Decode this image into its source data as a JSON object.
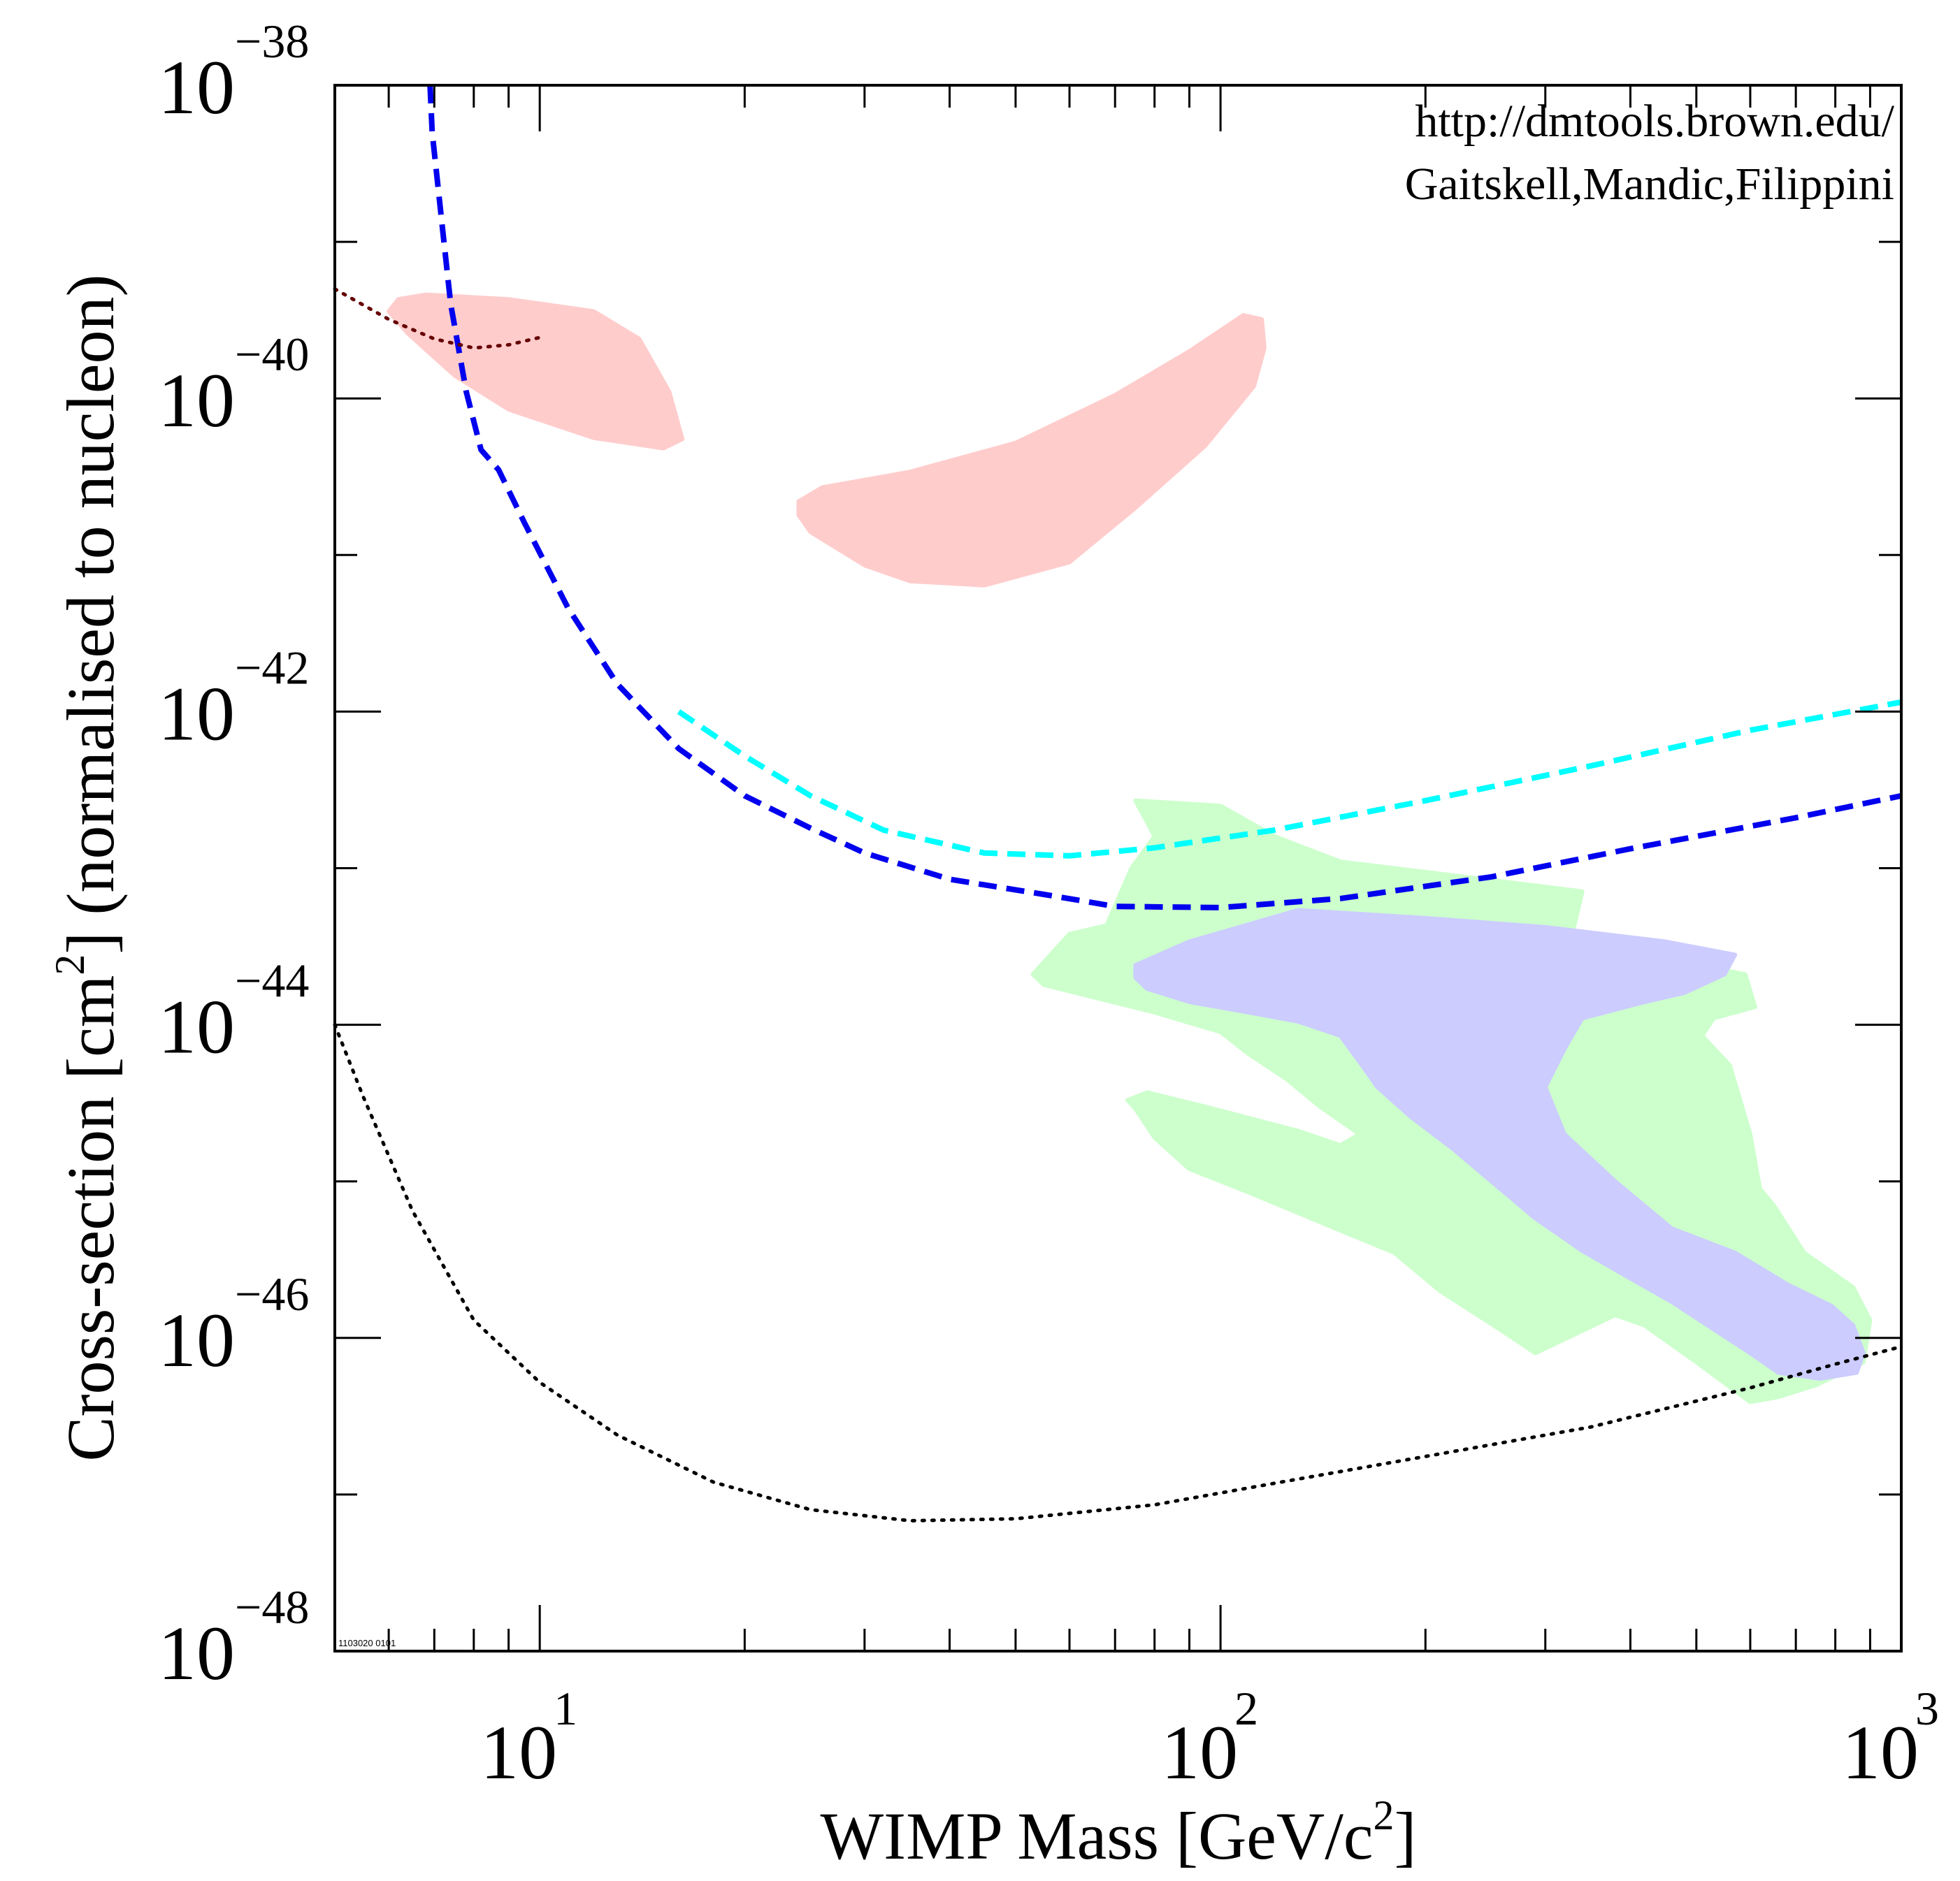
{
  "chart_data": {
    "type": "line",
    "xscale": "log",
    "yscale": "log",
    "xlim": [
      5,
      1000
    ],
    "ylim": [
      1e-48,
      1e-38
    ],
    "xlabel": {
      "main": "WIMP Mass [GeV/c",
      "sup": "2",
      "end": "]"
    },
    "ylabel": {
      "main": "Cross-section [cm",
      "sup": "2",
      "end": "] (normalised to nucleon)"
    },
    "xticks": [
      {
        "value": 10,
        "base": "10",
        "exp": "1"
      },
      {
        "value": 100,
        "base": "10",
        "exp": "2"
      },
      {
        "value": 1000,
        "base": "10",
        "exp": "3"
      }
    ],
    "yticks": [
      {
        "value": 1e-48,
        "base": "10",
        "exp": "−48"
      },
      {
        "value": 1e-46,
        "base": "10",
        "exp": "−46"
      },
      {
        "value": 1e-44,
        "base": "10",
        "exp": "−44"
      },
      {
        "value": 1e-42,
        "base": "10",
        "exp": "−42"
      },
      {
        "value": 1e-40,
        "base": "10",
        "exp": "−40"
      },
      {
        "value": 1e-38,
        "base": "10",
        "exp": "−38"
      }
    ],
    "annotations": [
      "http://dmtools.brown.edu/",
      "Gaitskell,Mandic,Filippini"
    ],
    "stamp": "1103020 0101",
    "regions": [
      {
        "name": "region-pink-low-mass",
        "color": "#ffcccc",
        "points": [
          [
            6.2,
            4.3e-40
          ],
          [
            6.8,
            4.6e-40
          ],
          [
            9,
            4.3e-40
          ],
          [
            12,
            3.6e-40
          ],
          [
            14,
            2.4e-40
          ],
          [
            15.5,
            1.1e-40
          ],
          [
            16.2,
            5.5e-41
          ],
          [
            15.2,
            4.8e-41
          ],
          [
            12,
            5.6e-41
          ],
          [
            9,
            8.5e-41
          ],
          [
            7.5,
            1.4e-40
          ],
          [
            6.4,
            2.6e-40
          ],
          [
            6.0,
            3.6e-40
          ]
        ]
      },
      {
        "name": "region-pink-high-mass",
        "color": "#ffcccc",
        "points": [
          [
            24,
            2.2e-41
          ],
          [
            26,
            2.7e-41
          ],
          [
            35,
            3.4e-41
          ],
          [
            50,
            5.2e-41
          ],
          [
            70,
            1.05e-40
          ],
          [
            90,
            2e-40
          ],
          [
            108,
            3.4e-40
          ],
          [
            115,
            3.2e-40
          ],
          [
            116,
            2.1e-40
          ],
          [
            112,
            1.2e-40
          ],
          [
            95,
            5e-41
          ],
          [
            75,
            2e-41
          ],
          [
            60,
            9e-42
          ],
          [
            45,
            6.4e-42
          ],
          [
            35,
            6.8e-42
          ],
          [
            30,
            8.6e-42
          ],
          [
            25,
            1.4e-41
          ],
          [
            24,
            1.8e-41
          ]
        ]
      },
      {
        "name": "region-green-outer",
        "color": "#ccffcc",
        "points": [
          [
            53,
            2.1e-44
          ],
          [
            60,
            3.8e-44
          ],
          [
            68,
            4.3e-44
          ],
          [
            74,
            1e-43
          ],
          [
            80,
            1.6e-43
          ],
          [
            75,
            2.7e-43
          ],
          [
            100,
            2.5e-43
          ],
          [
            120,
            1.6e-43
          ],
          [
            150,
            1.1e-43
          ],
          [
            220,
            9e-44
          ],
          [
            300,
            7.6e-44
          ],
          [
            340,
            7.1e-44
          ],
          [
            330,
            4.1e-44
          ],
          [
            320,
            2.9e-44
          ],
          [
            400,
            3e-44
          ],
          [
            480,
            2.5e-44
          ],
          [
            590,
            2.1e-44
          ],
          [
            610,
            1.3e-44
          ],
          [
            530,
            1.1e-44
          ],
          [
            510,
            8.5e-45
          ],
          [
            560,
            5.5e-45
          ],
          [
            600,
            2e-45
          ],
          [
            620,
            9e-46
          ],
          [
            650,
            7e-46
          ],
          [
            720,
            3.5e-46
          ],
          [
            850,
            2.1e-46
          ],
          [
            900,
            1.3e-46
          ],
          [
            880,
            7e-47
          ],
          [
            750,
            5e-47
          ],
          [
            660,
            4.2e-47
          ],
          [
            600,
            3.9e-47
          ],
          [
            500,
            7e-47
          ],
          [
            420,
            1.2e-46
          ],
          [
            380,
            1.4e-46
          ],
          [
            290,
            8e-47
          ],
          [
            260,
            1.1e-46
          ],
          [
            210,
            2e-46
          ],
          [
            180,
            3.5e-46
          ],
          [
            140,
            5.5e-46
          ],
          [
            110,
            8.5e-46
          ],
          [
            90,
            1.2e-45
          ],
          [
            80,
            1.9e-45
          ],
          [
            75,
            2.9e-45
          ],
          [
            73,
            3.3e-45
          ],
          [
            78,
            3.7e-45
          ],
          [
            95,
            3e-45
          ],
          [
            130,
            2.1e-45
          ],
          [
            150,
            1.7e-45
          ],
          [
            160,
            2e-45
          ],
          [
            140,
            3e-45
          ],
          [
            125,
            4.5e-45
          ],
          [
            110,
            6.5e-45
          ],
          [
            100,
            9e-45
          ],
          [
            80,
            1.2e-44
          ],
          [
            65,
            1.5e-44
          ],
          [
            55,
            1.8e-44
          ]
        ]
      },
      {
        "name": "region-blue-inner",
        "color": "#ccccff",
        "points": [
          [
            75,
            2.4e-44
          ],
          [
            90,
            3.4e-44
          ],
          [
            130,
            5.4e-44
          ],
          [
            200,
            4.8e-44
          ],
          [
            300,
            4.2e-44
          ],
          [
            450,
            3.4e-44
          ],
          [
            570,
            2.8e-44
          ],
          [
            550,
            2.1e-44
          ],
          [
            480,
            1.6e-44
          ],
          [
            420,
            1.4e-44
          ],
          [
            340,
            1.1e-44
          ],
          [
            320,
            7e-45
          ],
          [
            300,
            4e-45
          ],
          [
            320,
            2e-45
          ],
          [
            380,
            1e-45
          ],
          [
            460,
            5e-46
          ],
          [
            570,
            3.5e-46
          ],
          [
            680,
            2.2e-46
          ],
          [
            790,
            1.6e-46
          ],
          [
            850,
            1.2e-46
          ],
          [
            880,
            8e-47
          ],
          [
            860,
            6e-47
          ],
          [
            760,
            5.5e-47
          ],
          [
            660,
            6e-47
          ],
          [
            600,
            8e-47
          ],
          [
            520,
            1.2e-46
          ],
          [
            460,
            1.7e-46
          ],
          [
            400,
            2.4e-46
          ],
          [
            340,
            3.6e-46
          ],
          [
            290,
            5.8e-46
          ],
          [
            250,
            1e-45
          ],
          [
            220,
            1.6e-45
          ],
          [
            190,
            2.6e-45
          ],
          [
            170,
            4e-45
          ],
          [
            160,
            5.8e-45
          ],
          [
            150,
            8.5e-45
          ],
          [
            130,
            1.05e-44
          ],
          [
            110,
            1.2e-44
          ],
          [
            90,
            1.4e-44
          ],
          [
            78,
            1.7e-44
          ],
          [
            75,
            2e-44
          ]
        ]
      }
    ],
    "series": [
      {
        "name": "blue-dashed-limit",
        "color": "#0000ee",
        "style": "dashed",
        "points": [
          [
            6.9,
            1e-38
          ],
          [
            6.95,
            5e-39
          ],
          [
            7.2,
            1.2e-39
          ],
          [
            7.4,
            4e-40
          ],
          [
            7.8,
            1.1e-40
          ],
          [
            8.2,
            4.7e-41
          ],
          [
            8.7,
            3.5e-41
          ],
          [
            9.5,
            1.6e-41
          ],
          [
            11,
            4.6e-42
          ],
          [
            13,
            1.5e-42
          ],
          [
            16,
            5.8e-43
          ],
          [
            20,
            2.9e-43
          ],
          [
            25,
            1.8e-43
          ],
          [
            30,
            1.25e-43
          ],
          [
            40,
            8.5e-44
          ],
          [
            55,
            6.8e-44
          ],
          [
            70,
            5.7e-44
          ],
          [
            100,
            5.6e-44
          ],
          [
            150,
            6.4e-44
          ],
          [
            250,
            8.8e-44
          ],
          [
            400,
            1.33e-43
          ],
          [
            700,
            2.1e-43
          ],
          [
            1000,
            2.9e-43
          ]
        ]
      },
      {
        "name": "cyan-dashed-limit",
        "color": "#00ffff",
        "style": "dashed",
        "points": [
          [
            16,
            1e-42
          ],
          [
            20,
            5.2e-43
          ],
          [
            25,
            2.9e-43
          ],
          [
            32,
            1.75e-43
          ],
          [
            45,
            1.25e-43
          ],
          [
            60,
            1.2e-43
          ],
          [
            80,
            1.35e-43
          ],
          [
            120,
            1.75e-43
          ],
          [
            200,
            2.7e-43
          ],
          [
            350,
            4.5e-43
          ],
          [
            600,
            7.6e-43
          ],
          [
            1000,
            1.15e-42
          ]
        ]
      },
      {
        "name": "black-dotted-projection",
        "color": "#000000",
        "style": "dotted",
        "points": [
          [
            5,
            1e-44
          ],
          [
            5.5,
            3.5e-45
          ],
          [
            6.5,
            6.5e-46
          ],
          [
            8,
            1.3e-46
          ],
          [
            10,
            5.2e-47
          ],
          [
            13,
            2.4e-47
          ],
          [
            18,
            1.2e-47
          ],
          [
            25,
            8e-48
          ],
          [
            35,
            6.8e-48
          ],
          [
            50,
            7e-48
          ],
          [
            80,
            8.6e-48
          ],
          [
            120,
            1.18e-47
          ],
          [
            200,
            1.75e-47
          ],
          [
            350,
            2.7e-47
          ],
          [
            600,
            4.8e-47
          ],
          [
            800,
            6.8e-47
          ],
          [
            1000,
            8.8e-47
          ]
        ]
      },
      {
        "name": "darkred-dotted-curve",
        "color": "#660000",
        "style": "dotted",
        "points": [
          [
            5,
            5e-40
          ],
          [
            6,
            3.2e-40
          ],
          [
            7,
            2.4e-40
          ],
          [
            8,
            2.1e-40
          ],
          [
            9,
            2.2e-40
          ],
          [
            10,
            2.45e-40
          ]
        ]
      }
    ]
  }
}
